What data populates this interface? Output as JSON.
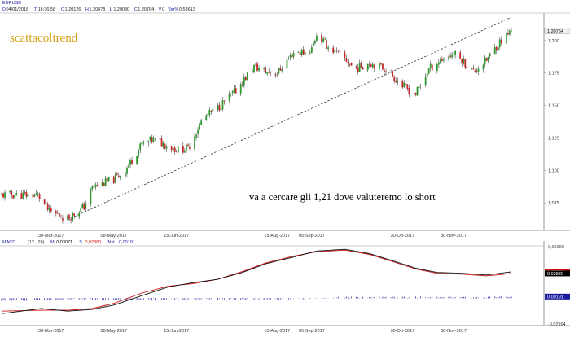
{
  "header": {
    "symbol": "EURUSD",
    "info_line": [
      "D",
      "04/01/2018",
      "T",
      "16:36:58",
      "O",
      "1,20126",
      "H",
      "1,20878",
      "L",
      "1,20030",
      "C",
      "1,20764",
      "V",
      "0",
      "Var%",
      "0,53613"
    ]
  },
  "watermark": "scattacoltrend",
  "annotation": "va a cercare gli 1,21 dove valuteremo lo short",
  "colors": {
    "bull": "#2e9a2e",
    "bear": "#c62828",
    "wick": "#222222",
    "trendline": "#333333",
    "macd_line": "#111111",
    "signal_line": "#cc1111",
    "histogram": "#1a1aa0",
    "label_green": "#1a7a1a",
    "label_red": "#d01010",
    "label_black": "#000000",
    "label_blue": "#1a1aa0",
    "watermark": "#d4a017"
  },
  "chart_data": [
    {
      "type": "candlestick",
      "ylim": [
        1.055,
        1.22
      ],
      "yticks": [
        1.075,
        1.1,
        1.125,
        1.15,
        1.175,
        1.2
      ],
      "ytick_labels": [
        "1,075",
        "1,100",
        "1,125",
        "1,150",
        "1,175",
        "1,200"
      ],
      "last_price_label": "1,20764",
      "xticks": [
        "30-Mar-2017",
        "08-May-2017",
        "15-Jun-2017",
        "15-Aug-2017",
        "05-Sep-2017",
        "30-Ott-2017",
        "30-Nov-2017"
      ],
      "trendline": {
        "from": [
          "2017-04-10",
          1.062
        ],
        "to": [
          "2018-01-04",
          1.218
        ],
        "style": "dashed"
      },
      "series": [
        {
          "date": "2017-03-23",
          "close": 1.081
        },
        {
          "date": "2017-03-30",
          "close": 1.068
        },
        {
          "date": "2017-04-06",
          "close": 1.065
        },
        {
          "date": "2017-04-10",
          "close": 1.063
        },
        {
          "date": "2017-04-20",
          "close": 1.072
        },
        {
          "date": "2017-04-25",
          "close": 1.087
        },
        {
          "date": "2017-05-08",
          "close": 1.093
        },
        {
          "date": "2017-05-15",
          "close": 1.1
        },
        {
          "date": "2017-05-25",
          "close": 1.12
        },
        {
          "date": "2017-06-01",
          "close": 1.124
        },
        {
          "date": "2017-06-15",
          "close": 1.116
        },
        {
          "date": "2017-06-22",
          "close": 1.117
        },
        {
          "date": "2017-07-01",
          "close": 1.14
        },
        {
          "date": "2017-07-10",
          "close": 1.148
        },
        {
          "date": "2017-07-20",
          "close": 1.16
        },
        {
          "date": "2017-08-01",
          "close": 1.18
        },
        {
          "date": "2017-08-08",
          "close": 1.176
        },
        {
          "date": "2017-08-15",
          "close": 1.175
        },
        {
          "date": "2017-08-25",
          "close": 1.191
        },
        {
          "date": "2017-09-01",
          "close": 1.191
        },
        {
          "date": "2017-09-05",
          "close": 1.194
        },
        {
          "date": "2017-09-08",
          "close": 1.205
        },
        {
          "date": "2017-09-15",
          "close": 1.195
        },
        {
          "date": "2017-09-25",
          "close": 1.186
        },
        {
          "date": "2017-10-01",
          "close": 1.178
        },
        {
          "date": "2017-10-10",
          "close": 1.183
        },
        {
          "date": "2017-10-20",
          "close": 1.178
        },
        {
          "date": "2017-10-30",
          "close": 1.165
        },
        {
          "date": "2017-11-07",
          "close": 1.159
        },
        {
          "date": "2017-11-15",
          "close": 1.178
        },
        {
          "date": "2017-11-22",
          "close": 1.185
        },
        {
          "date": "2017-11-30",
          "close": 1.19
        },
        {
          "date": "2017-12-05",
          "close": 1.185
        },
        {
          "date": "2017-12-12",
          "close": 1.176
        },
        {
          "date": "2017-12-20",
          "close": 1.185
        },
        {
          "date": "2017-12-28",
          "close": 1.199
        },
        {
          "date": "2018-01-04",
          "close": 1.2076
        }
      ]
    },
    {
      "type": "line",
      "title": "MACD",
      "params": "(12 , 26)",
      "legend": [
        {
          "label": "M",
          "value": "0,03071",
          "color_key": "label_black"
        },
        {
          "label": "S",
          "value": "0,02880",
          "color_key": "label_red"
        },
        {
          "label": "Nst",
          "value": "0,00191",
          "color_key": "label_blue"
        }
      ],
      "ylim": [
        -0.03,
        0.06
      ],
      "yticks": [
        0.06,
        -0.03
      ],
      "ytick_labels": [
        "0,05960",
        "-0,02994"
      ],
      "value_labels": [
        {
          "text": "0,03071",
          "value": 0.0307,
          "color_key": "label_red"
        },
        {
          "text": "0,02880",
          "value": 0.0288,
          "color_key": "label_black"
        },
        {
          "text": "0,00191",
          "value": 0.0019,
          "color_key": "label_blue"
        }
      ],
      "xticks": [
        "30-Mar-2017",
        "08-May-2017",
        "15-Jun-2017",
        "15-Aug-2017",
        "05-Sep-2017",
        "30-Ott-2017",
        "30-Nov-2017"
      ],
      "series": [
        {
          "name": "M",
          "points": [
            [
              "2017-03-01",
              -0.018
            ],
            [
              "2017-03-25",
              -0.012
            ],
            [
              "2017-04-10",
              -0.015
            ],
            [
              "2017-04-25",
              -0.013
            ],
            [
              "2017-05-08",
              -0.008
            ],
            [
              "2017-05-25",
              0.003
            ],
            [
              "2017-06-10",
              0.013
            ],
            [
              "2017-06-25",
              0.018
            ],
            [
              "2017-07-10",
              0.022
            ],
            [
              "2017-07-25",
              0.03
            ],
            [
              "2017-08-08",
              0.04
            ],
            [
              "2017-08-25",
              0.048
            ],
            [
              "2017-09-08",
              0.055
            ],
            [
              "2017-09-25",
              0.057
            ],
            [
              "2017-10-10",
              0.052
            ],
            [
              "2017-10-25",
              0.043
            ],
            [
              "2017-11-07",
              0.035
            ],
            [
              "2017-11-20",
              0.03
            ],
            [
              "2017-12-05",
              0.029
            ],
            [
              "2017-12-20",
              0.027
            ],
            [
              "2018-01-04",
              0.0307
            ]
          ]
        },
        {
          "name": "S",
          "points": [
            [
              "2017-03-01",
              -0.015
            ],
            [
              "2017-03-25",
              -0.014
            ],
            [
              "2017-04-10",
              -0.014
            ],
            [
              "2017-04-25",
              -0.012
            ],
            [
              "2017-05-08",
              -0.006
            ],
            [
              "2017-05-25",
              0.006
            ],
            [
              "2017-06-10",
              0.014
            ],
            [
              "2017-06-25",
              0.017
            ],
            [
              "2017-07-10",
              0.022
            ],
            [
              "2017-07-25",
              0.031
            ],
            [
              "2017-08-08",
              0.041
            ],
            [
              "2017-08-25",
              0.049
            ],
            [
              "2017-09-08",
              0.054
            ],
            [
              "2017-09-25",
              0.056
            ],
            [
              "2017-10-10",
              0.051
            ],
            [
              "2017-10-25",
              0.042
            ],
            [
              "2017-11-07",
              0.034
            ],
            [
              "2017-11-20",
              0.029
            ],
            [
              "2017-12-05",
              0.028
            ],
            [
              "2017-12-20",
              0.026
            ],
            [
              "2018-01-04",
              0.0288
            ]
          ]
        },
        {
          "name": "Nst",
          "type": "histogram",
          "points": [
            [
              "2017-03-01",
              -0.003
            ],
            [
              "2017-04-10",
              -0.001
            ],
            [
              "2017-05-08",
              -0.002
            ],
            [
              "2017-06-10",
              -0.001
            ],
            [
              "2017-07-25",
              -0.001
            ],
            [
              "2017-08-25",
              -0.001
            ],
            [
              "2017-09-25",
              0.001
            ],
            [
              "2017-10-25",
              0.001
            ],
            [
              "2017-11-20",
              0.001
            ],
            [
              "2017-12-20",
              0.001
            ],
            [
              "2018-01-04",
              0.0019
            ]
          ]
        }
      ]
    }
  ]
}
